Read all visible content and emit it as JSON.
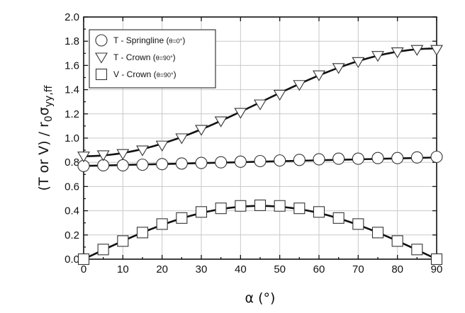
{
  "chart_data": {
    "type": "scatter",
    "x_axis": {
      "label": "α (°)",
      "range": [
        0,
        90
      ],
      "ticks": [
        0,
        10,
        20,
        30,
        40,
        50,
        60,
        70,
        80,
        90
      ]
    },
    "y_axis": {
      "label_main": "(T or V) / r",
      "label_sub0": "0",
      "label_sigma": "σ",
      "label_subyy": "yy,ff",
      "range": [
        0,
        2
      ],
      "ticks": [
        "0.0",
        "0.2",
        "0.4",
        "0.6",
        "0.8",
        "1.0",
        "1.2",
        "1.4",
        "1.6",
        "1.8",
        "2.0"
      ]
    },
    "grid": true,
    "legend_placement": "top-left",
    "legend": [
      {
        "marker": "circle",
        "prefix": "T - Springline (",
        "theta": "θ=0°",
        "suffix": ")"
      },
      {
        "marker": "triangle-down",
        "prefix": "T - Crown (",
        "theta": "θ=90°",
        "suffix": ")"
      },
      {
        "marker": "square",
        "prefix": "V - Crown (",
        "theta": "θ=90°",
        "suffix": ")"
      }
    ],
    "x": [
      0,
      5,
      10,
      15,
      20,
      25,
      30,
      35,
      40,
      45,
      50,
      55,
      60,
      65,
      70,
      75,
      80,
      85,
      90
    ],
    "series": [
      {
        "name": "T - Springline (θ=0°)",
        "marker": "circle",
        "values": [
          0.77,
          0.775,
          0.775,
          0.78,
          0.785,
          0.79,
          0.795,
          0.8,
          0.805,
          0.81,
          0.815,
          0.82,
          0.825,
          0.83,
          0.83,
          0.835,
          0.835,
          0.84,
          0.845
        ],
        "fit": {
          "kind": "linear",
          "y0": 0.77,
          "y90": 0.84
        }
      },
      {
        "name": "T - Crown (θ=90°)",
        "marker": "triangle-down",
        "values": [
          0.85,
          0.86,
          0.87,
          0.9,
          0.94,
          1.0,
          1.07,
          1.14,
          1.21,
          1.28,
          1.36,
          1.44,
          1.52,
          1.58,
          1.63,
          1.68,
          1.71,
          1.73,
          1.73
        ],
        "fit": {
          "kind": "cosine",
          "y0": 0.85,
          "y90": 1.74
        }
      },
      {
        "name": "V - Crown (θ=90°)",
        "marker": "square",
        "values": [
          0.0,
          0.08,
          0.15,
          0.22,
          0.29,
          0.34,
          0.39,
          0.42,
          0.44,
          0.445,
          0.44,
          0.42,
          0.39,
          0.34,
          0.29,
          0.22,
          0.15,
          0.08,
          0.0
        ],
        "fit": {
          "kind": "sine2",
          "amplitude": 0.44
        }
      }
    ],
    "colors": {
      "markers": "#333333",
      "fit_line": "#111111",
      "grid": "#c8c8c8"
    }
  }
}
